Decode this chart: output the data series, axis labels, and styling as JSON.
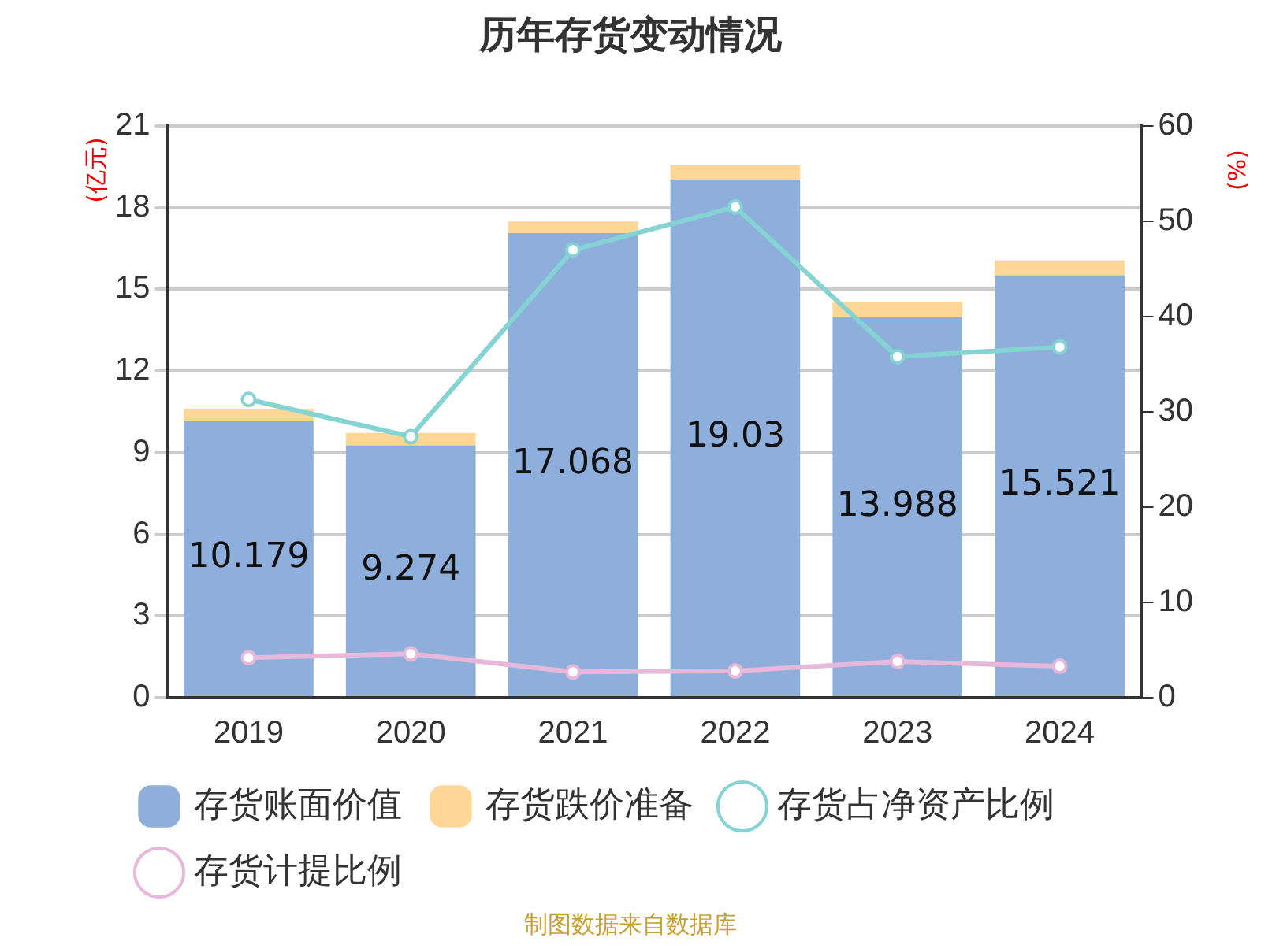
{
  "chart_data": {
    "type": "bar",
    "title": "历年存货变动情况",
    "ylabel": "(亿元)",
    "y2label": "(%)",
    "stacked": true,
    "categories": [
      "2019",
      "2020",
      "2021",
      "2022",
      "2023",
      "2024"
    ],
    "series": [
      {
        "name": "存货账面价值",
        "color": "#8eaedb",
        "values": [
          10.179,
          9.274,
          17.068,
          19.03,
          13.988,
          15.521
        ],
        "value_labels": [
          "10.179",
          "9.274",
          "17.068",
          "19.03",
          "13.988",
          "15.521"
        ]
      },
      {
        "name": "存货跌价准备",
        "color": "#fed797",
        "values": [
          0.44,
          0.45,
          0.45,
          0.53,
          0.55,
          0.54
        ]
      },
      {
        "name": "存货占净资产比例",
        "type": "line",
        "axis": "y2",
        "color": "#85d3d3",
        "values": [
          31.3,
          27.4,
          47.0,
          51.5,
          35.8,
          36.8
        ]
      },
      {
        "name": "存货计提比例",
        "type": "line",
        "axis": "y2",
        "color": "#e6b9da",
        "values": [
          4.2,
          4.6,
          2.7,
          2.8,
          3.8,
          3.3
        ]
      }
    ],
    "ylim": [
      0,
      21
    ],
    "yticks": [
      0,
      3,
      6,
      9,
      12,
      15,
      18,
      21
    ],
    "y2lim": [
      0,
      60
    ],
    "y2ticks": [
      0,
      10,
      20,
      30,
      40,
      50,
      60
    ],
    "grid": "y",
    "legend": "bottom",
    "marker": "circle",
    "line_style": "solid",
    "annotations": [
      "制图数据来自数据库"
    ]
  }
}
